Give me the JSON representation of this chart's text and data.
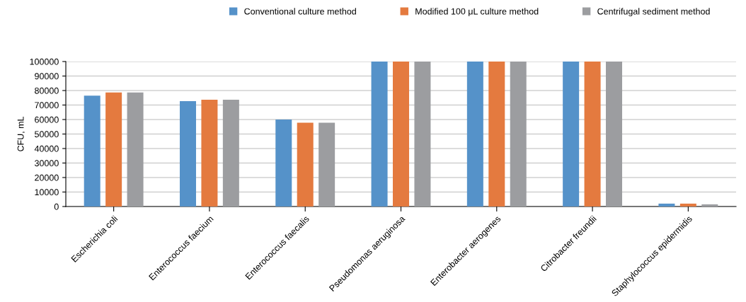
{
  "chart_data": {
    "type": "bar",
    "ylabel": "CFU, mL",
    "categories": [
      "Escherichia coli",
      "Enterococcus faecium",
      "Enterococcus faecalis",
      "Pseudomonas aeruginosa",
      "Enterobacter aerogenes",
      "Citrobacter freundii",
      "Staphylococcus epidermidis"
    ],
    "series": [
      {
        "name": "Conventional culture method",
        "color": "#5592c9",
        "values": [
          76500,
          72700,
          60000,
          100000,
          100000,
          100000,
          2000
        ]
      },
      {
        "name": "Modified 100 μL culture method",
        "color": "#e47a3f",
        "values": [
          78700,
          73700,
          57800,
          100000,
          100000,
          100000,
          2000
        ]
      },
      {
        "name": "Centrifugal sediment method",
        "color": "#9c9da0",
        "values": [
          78700,
          73700,
          57800,
          100000,
          100000,
          100000,
          1500
        ]
      }
    ],
    "ylim": [
      0,
      100000
    ],
    "yticks": [
      0,
      10000,
      20000,
      30000,
      40000,
      50000,
      60000,
      70000,
      80000,
      90000,
      100000
    ],
    "grid": "y",
    "legend": "top"
  }
}
